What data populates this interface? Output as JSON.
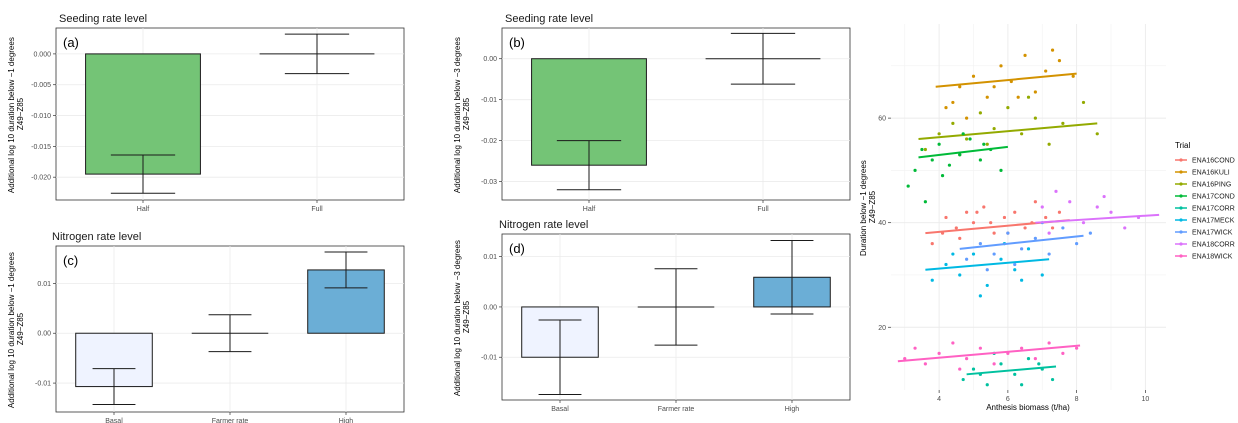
{
  "colors": {
    "seeding_fill": "#74c476",
    "high_fill": "#6baed6",
    "basal_fill": "#eff3ff",
    "grid": "#ebebeb",
    "panel_border": "#333333"
  },
  "chart_data": [
    {
      "id": "a",
      "type": "bar",
      "panel_label": "(a)",
      "title": "Seeding rate level",
      "ylabel": "Additional log 10 duration below −1 degrees\nZ49−Z85",
      "categories": [
        "Half",
        "Full"
      ],
      "values": [
        -0.0195,
        0.0
      ],
      "err_low": [
        -0.0226,
        -0.0032
      ],
      "err_high": [
        -0.0164,
        0.0032
      ],
      "fills": [
        "#74c476",
        null
      ],
      "ylim": [
        -0.0237,
        0.0042
      ],
      "yticks": [
        -0.02,
        -0.015,
        -0.01,
        -0.005,
        0.0
      ],
      "ytick_labels": [
        "-0.020",
        "-0.015",
        "-0.010",
        "-0.005",
        "0.000"
      ],
      "grid": true
    },
    {
      "id": "b",
      "type": "bar",
      "panel_label": "(b)",
      "title": "Seeding rate level",
      "ylabel": "Additional log 10 duration below −3 degrees\nZ49−Z85",
      "categories": [
        "Half",
        "Full"
      ],
      "values": [
        -0.026,
        0.0
      ],
      "err_low": [
        -0.032,
        -0.0062
      ],
      "err_high": [
        -0.02,
        0.0062
      ],
      "fills": [
        "#74c476",
        null
      ],
      "ylim": [
        -0.0345,
        0.0075
      ],
      "yticks": [
        -0.03,
        -0.02,
        -0.01,
        0.0
      ],
      "ytick_labels": [
        "-0.03",
        "-0.02",
        "-0.01",
        "0.00"
      ],
      "grid": true
    },
    {
      "id": "c",
      "type": "bar",
      "panel_label": "(c)",
      "title": "Nitrogen rate level",
      "ylabel": "Additional log 10 duration below −1 degrees\nZ49−Z85",
      "categories": [
        "Basal",
        "Farmer rate",
        "High"
      ],
      "values": [
        -0.0107,
        0.0,
        0.0127
      ],
      "err_low": [
        -0.0143,
        -0.0037,
        0.0091
      ],
      "err_high": [
        -0.0071,
        0.0037,
        0.0163
      ],
      "fills": [
        "#eff3ff",
        null,
        "#6baed6"
      ],
      "ylim": [
        -0.0158,
        0.0175
      ],
      "yticks": [
        -0.01,
        0.0,
        0.01
      ],
      "ytick_labels": [
        "-0.01",
        "0.00",
        "0.01"
      ],
      "grid": true
    },
    {
      "id": "d",
      "type": "bar",
      "panel_label": "(d)",
      "title": "Nitrogen rate level",
      "ylabel": "Additional log 10 duration below −3 degrees\nZ49−Z85",
      "categories": [
        "Basal",
        "Farmer rate",
        "High"
      ],
      "values": [
        -0.01,
        0.0,
        0.0059
      ],
      "err_low": [
        -0.0174,
        -0.0076,
        -0.0014
      ],
      "err_high": [
        -0.0026,
        0.0076,
        0.0132
      ],
      "fills": [
        "#eff3ff",
        null,
        "#6baed6"
      ],
      "ylim": [
        -0.0185,
        0.0145
      ],
      "yticks": [
        -0.01,
        0.0,
        0.01
      ],
      "ytick_labels": [
        "-0.01",
        "0.00",
        "0.01"
      ],
      "grid": true
    },
    {
      "id": "e",
      "type": "scatter",
      "title": "",
      "xlabel": "Anthesis biomass (t/ha)",
      "ylabel": "Duration below −1 degrees\nZ49−Z85",
      "xlim": [
        2.6,
        10.6
      ],
      "ylim": [
        8,
        78
      ],
      "xticks": [
        4,
        6,
        8,
        10
      ],
      "yticks": [
        20,
        40,
        60
      ],
      "grid": true,
      "legend_title": "Trial",
      "legend_position": "right",
      "series": [
        {
          "name": "ENA16COND",
          "color": "#f8766d",
          "fit": [
            [
              3.6,
              38
            ],
            [
              7.8,
              40.5
            ]
          ],
          "points": [
            [
              4.2,
              41
            ],
            [
              4.5,
              39
            ],
            [
              4.8,
              42
            ],
            [
              5.0,
              40
            ],
            [
              5.3,
              43
            ],
            [
              5.6,
              38
            ],
            [
              5.9,
              41
            ],
            [
              6.2,
              42
            ],
            [
              6.5,
              39
            ],
            [
              6.8,
              44
            ],
            [
              7.1,
              41
            ],
            [
              4.6,
              37
            ],
            [
              5.5,
              40
            ],
            [
              6.0,
              38
            ],
            [
              7.5,
              42
            ],
            [
              4.1,
              38
            ],
            [
              3.8,
              36
            ],
            [
              5.1,
              42
            ],
            [
              6.7,
              40
            ],
            [
              7.3,
              39
            ]
          ]
        },
        {
          "name": "ENA16KULI",
          "color": "#d39200",
          "fit": [
            [
              3.9,
              66
            ],
            [
              8.0,
              68.5
            ]
          ],
          "points": [
            [
              4.2,
              62
            ],
            [
              4.6,
              66
            ],
            [
              5.0,
              68
            ],
            [
              5.4,
              64
            ],
            [
              5.8,
              70
            ],
            [
              6.1,
              67
            ],
            [
              6.5,
              72
            ],
            [
              6.8,
              65
            ],
            [
              7.1,
              69
            ],
            [
              7.5,
              71
            ],
            [
              7.9,
              68
            ],
            [
              4.8,
              60
            ],
            [
              6.3,
              64
            ],
            [
              7.3,
              73
            ],
            [
              5.6,
              66
            ],
            [
              4.4,
              63
            ]
          ]
        },
        {
          "name": "ENA16PING",
          "color": "#93aa00",
          "fit": [
            [
              3.4,
              56
            ],
            [
              8.6,
              59
            ]
          ],
          "points": [
            [
              3.6,
              54
            ],
            [
              4.0,
              57
            ],
            [
              4.4,
              59
            ],
            [
              4.8,
              56
            ],
            [
              5.2,
              61
            ],
            [
              5.6,
              58
            ],
            [
              6.0,
              62
            ],
            [
              6.4,
              57
            ],
            [
              6.8,
              60
            ],
            [
              7.2,
              55
            ],
            [
              7.6,
              59
            ],
            [
              8.2,
              63
            ],
            [
              8.6,
              57
            ],
            [
              4.6,
              53
            ],
            [
              5.4,
              55
            ],
            [
              6.6,
              64
            ]
          ]
        },
        {
          "name": "ENA17COND",
          "color": "#00ba38",
          "fit": [
            [
              3.4,
              52.5
            ],
            [
              6.0,
              54.5
            ]
          ],
          "points": [
            [
              3.1,
              47
            ],
            [
              3.3,
              50
            ],
            [
              3.5,
              54
            ],
            [
              3.8,
              52
            ],
            [
              4.0,
              55
            ],
            [
              4.3,
              51
            ],
            [
              4.6,
              53
            ],
            [
              4.9,
              56
            ],
            [
              5.2,
              52
            ],
            [
              5.5,
              54
            ],
            [
              5.8,
              50
            ],
            [
              3.6,
              44
            ],
            [
              4.1,
              49
            ],
            [
              4.7,
              57
            ],
            [
              5.3,
              55
            ]
          ]
        },
        {
          "name": "ENA17CORR",
          "color": "#00c19f",
          "fit": [
            [
              4.8,
              11
            ],
            [
              7.4,
              12.5
            ]
          ],
          "points": [
            [
              4.7,
              10
            ],
            [
              5.0,
              12
            ],
            [
              5.4,
              9
            ],
            [
              5.8,
              13
            ],
            [
              6.2,
              11
            ],
            [
              6.6,
              14
            ],
            [
              7.0,
              12
            ],
            [
              7.3,
              10
            ],
            [
              5.6,
              15
            ],
            [
              6.4,
              9
            ],
            [
              6.9,
              13
            ],
            [
              5.2,
              11
            ]
          ]
        },
        {
          "name": "ENA17MECK",
          "color": "#00b9e3",
          "fit": [
            [
              3.6,
              31
            ],
            [
              7.2,
              33
            ]
          ],
          "points": [
            [
              3.8,
              29
            ],
            [
              4.2,
              32
            ],
            [
              4.6,
              30
            ],
            [
              5.0,
              34
            ],
            [
              5.4,
              28
            ],
            [
              5.8,
              33
            ],
            [
              6.2,
              31
            ],
            [
              6.6,
              35
            ],
            [
              7.0,
              30
            ],
            [
              5.2,
              26
            ],
            [
              5.9,
              36
            ],
            [
              4.4,
              34
            ],
            [
              6.4,
              29
            ]
          ]
        },
        {
          "name": "ENA17WICK",
          "color": "#619cff",
          "fit": [
            [
              4.6,
              35
            ],
            [
              8.2,
              37.5
            ]
          ],
          "points": [
            [
              4.8,
              33
            ],
            [
              5.2,
              36
            ],
            [
              5.6,
              34
            ],
            [
              6.0,
              38
            ],
            [
              6.4,
              35
            ],
            [
              6.8,
              37
            ],
            [
              7.2,
              34
            ],
            [
              7.6,
              39
            ],
            [
              8.0,
              36
            ],
            [
              8.4,
              38
            ],
            [
              5.4,
              31
            ],
            [
              6.2,
              32
            ],
            [
              7.0,
              40
            ]
          ]
        },
        {
          "name": "ENA18CORR",
          "color": "#db72fb",
          "fit": [
            [
              6.8,
              40
            ],
            [
              10.4,
              41.5
            ]
          ],
          "points": [
            [
              7.0,
              43
            ],
            [
              7.4,
              46
            ],
            [
              7.8,
              44
            ],
            [
              8.2,
              40
            ],
            [
              8.6,
              43
            ],
            [
              9.0,
              42
            ],
            [
              9.4,
              39
            ],
            [
              9.8,
              41
            ],
            [
              7.2,
              38
            ],
            [
              8.8,
              45
            ]
          ]
        },
        {
          "name": "ENA18WICK",
          "color": "#ff61c3",
          "fit": [
            [
              2.8,
              13.5
            ],
            [
              8.1,
              16.5
            ]
          ],
          "points": [
            [
              3.0,
              14
            ],
            [
              3.3,
              16
            ],
            [
              3.6,
              13
            ],
            [
              4.0,
              15
            ],
            [
              4.4,
              17
            ],
            [
              4.8,
              14
            ],
            [
              5.2,
              16
            ],
            [
              5.6,
              13
            ],
            [
              6.0,
              15
            ],
            [
              6.4,
              16
            ],
            [
              6.8,
              14
            ],
            [
              7.2,
              17
            ],
            [
              7.6,
              15
            ],
            [
              8.0,
              16
            ],
            [
              4.6,
              12
            ]
          ]
        }
      ]
    }
  ]
}
